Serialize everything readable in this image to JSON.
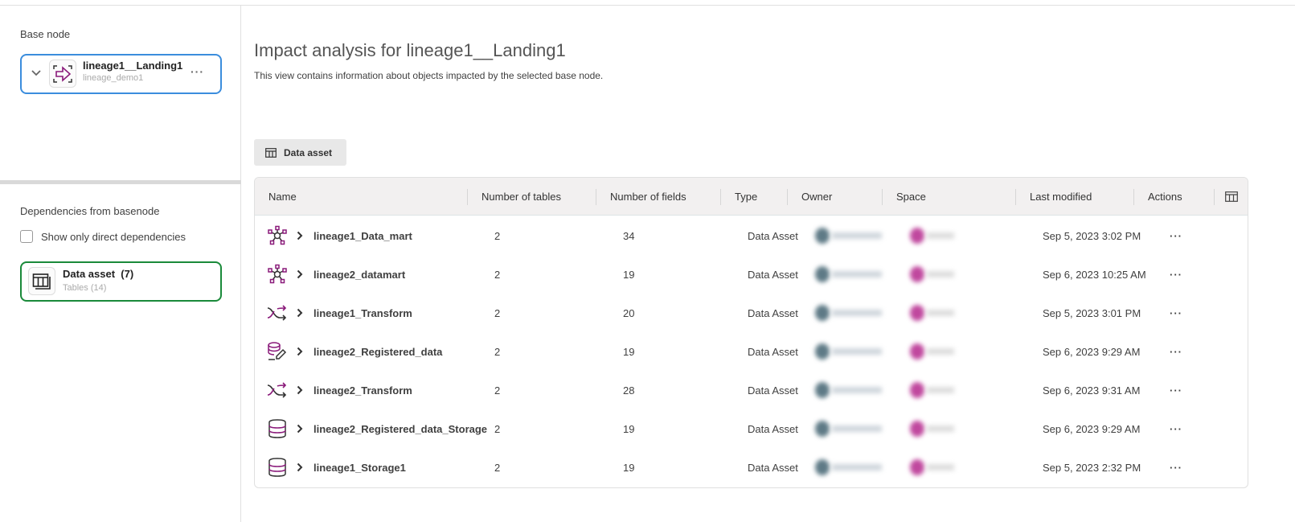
{
  "left": {
    "base_node_label": "Base node",
    "base_node": {
      "title": "lineage1__Landing1",
      "subtitle": "lineage_demo1",
      "icon": "landing-arrow-icon"
    },
    "dependencies_label": "Dependencies from basenode",
    "direct_only_label": "Show only direct dependencies",
    "direct_only_checked": false,
    "dependency": {
      "title": "Data asset",
      "count": "(7)",
      "subtitle": "Tables (14)",
      "icon": "table-icon"
    }
  },
  "main": {
    "title": "Impact analysis for lineage1__Landing1",
    "subtitle": "This view contains information about objects impacted by the selected base node.",
    "tab_label": "Data asset",
    "columns": [
      "Name",
      "Number of tables",
      "Number of fields",
      "Type",
      "Owner",
      "Space",
      "Last modified",
      "Actions"
    ],
    "rows": [
      {
        "icon": "data-mart-icon",
        "name": "lineage1_Data_mart",
        "tables": "2",
        "fields": "34",
        "type": "Data Asset",
        "modified": "Sep 5, 2023 3:02 PM"
      },
      {
        "icon": "data-mart-icon",
        "name": "lineage2_datamart",
        "tables": "2",
        "fields": "19",
        "type": "Data Asset",
        "modified": "Sep 6, 2023 10:25 AM"
      },
      {
        "icon": "transform-icon",
        "name": "lineage1_Transform",
        "tables": "2",
        "fields": "20",
        "type": "Data Asset",
        "modified": "Sep 5, 2023 3:01 PM"
      },
      {
        "icon": "registered-data-icon",
        "name": "lineage2_Registered_data",
        "tables": "2",
        "fields": "19",
        "type": "Data Asset",
        "modified": "Sep 6, 2023 9:29 AM"
      },
      {
        "icon": "transform-icon",
        "name": "lineage2_Transform",
        "tables": "2",
        "fields": "28",
        "type": "Data Asset",
        "modified": "Sep 6, 2023 9:31 AM"
      },
      {
        "icon": "storage-icon",
        "name": "lineage2_Registered_data_Storage",
        "tables": "2",
        "fields": "19",
        "type": "Data Asset",
        "modified": "Sep 6, 2023 9:29 AM"
      },
      {
        "icon": "storage-icon",
        "name": "lineage1_Storage1",
        "tables": "2",
        "fields": "19",
        "type": "Data Asset",
        "modified": "Sep 5, 2023 2:32 PM"
      }
    ]
  },
  "colors": {
    "accent": "#8a1a7a",
    "base_border": "#3b8ddd",
    "dep_border": "#1a8a3a",
    "owner_avatar": "#5e7a86",
    "space_avatar": "#c0489e"
  }
}
